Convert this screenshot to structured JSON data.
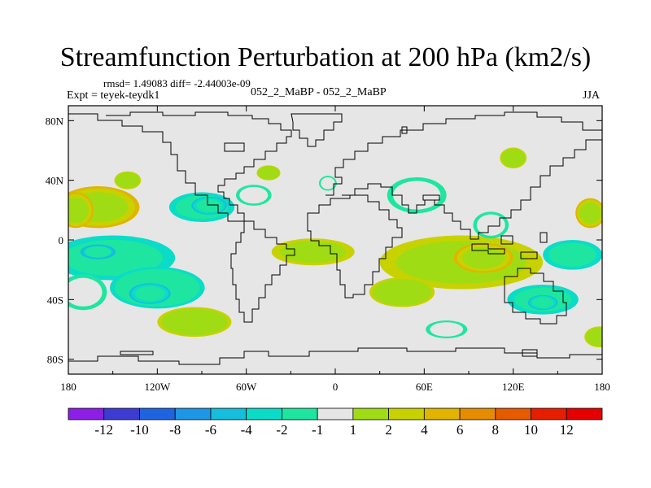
{
  "chart_data": {
    "type": "heatmap",
    "title": "Streamfunction Perturbation at 200 hPa (km2/s)",
    "stats": "rmsd= 1.49083 diff= -2.44003e-09",
    "experiment": "Expt = teyek-teydk1",
    "comparison": "052_2_MaBP - 052_2_MaBP",
    "season": "JJA",
    "xlim": [
      -180,
      180
    ],
    "ylim": [
      -90,
      90
    ],
    "x_ticks": [
      {
        "value": -180,
        "label": "180"
      },
      {
        "value": -120,
        "label": "120W"
      },
      {
        "value": -60,
        "label": "60W"
      },
      {
        "value": 0,
        "label": "0"
      },
      {
        "value": 60,
        "label": "60E"
      },
      {
        "value": 120,
        "label": "120E"
      },
      {
        "value": 180,
        "label": "180"
      }
    ],
    "y_ticks": [
      {
        "value": 80,
        "label": "80N"
      },
      {
        "value": 40,
        "label": "40N"
      },
      {
        "value": 0,
        "label": "0"
      },
      {
        "value": -40,
        "label": "40S"
      },
      {
        "value": -80,
        "label": "80S"
      }
    ],
    "levels": [
      -12,
      -10,
      -8,
      -6,
      -4,
      -2,
      -1,
      1,
      2,
      4,
      6,
      8,
      10,
      12
    ],
    "level_labels": [
      "-12",
      "-10",
      "-8",
      "-6",
      "-4",
      "-2",
      "-1",
      "1",
      "2",
      "4",
      "6",
      "8",
      "10",
      "12"
    ],
    "colors": [
      "#8c1ee6",
      "#3c3cd2",
      "#1e64e1",
      "#1e96e6",
      "#14bedc",
      "#0adcc8",
      "#1ee6a0",
      "#e6e6e6",
      "#a0dc14",
      "#c8d200",
      "#e1b400",
      "#e68c00",
      "#e65a00",
      "#e61e00",
      "#e60000"
    ],
    "features": [
      {
        "name": "central Pacific NH positive",
        "lon": -160,
        "lat": 22,
        "rlon": 28,
        "rlat": 14,
        "value": 5
      },
      {
        "name": "central Pacific NH positive (west)",
        "lon": -175,
        "lat": 20,
        "rlon": 12,
        "rlat": 12,
        "value": 4
      },
      {
        "name": "western Pacific NH positive",
        "lon": 172,
        "lat": 18,
        "rlon": 10,
        "rlat": 10,
        "value": 4
      },
      {
        "name": "North America negative",
        "lon": -90,
        "lat": 22,
        "rlon": 22,
        "rlat": 10,
        "value": -3
      },
      {
        "name": "North America negative core",
        "lon": -85,
        "lat": 23,
        "rlon": 12,
        "rlat": 6,
        "value": -4.5
      },
      {
        "name": "Atlantic NH negative",
        "lon": -55,
        "lat": 30,
        "rlon": 12,
        "rlat": 7,
        "value": -2
      },
      {
        "name": "tropical Pacific SH negative",
        "lon": -150,
        "lat": -12,
        "rlon": 42,
        "rlat": 15,
        "value": -3
      },
      {
        "name": "tropical Pacific SH negative core",
        "lon": -160,
        "lat": -8,
        "rlon": 12,
        "rlat": 5,
        "value": -6
      },
      {
        "name": "southern Pacific negative",
        "lon": -120,
        "lat": -32,
        "rlon": 32,
        "rlat": 14,
        "value": -2.5
      },
      {
        "name": "southern Pacific negative core",
        "lon": -125,
        "lat": -36,
        "rlon": 14,
        "rlat": 7,
        "value": -4.5
      },
      {
        "name": "southern Pacific negative (west)",
        "lon": -170,
        "lat": -35,
        "rlon": 16,
        "rlat": 12,
        "value": -2
      },
      {
        "name": "South Atlantic positive",
        "lon": -15,
        "lat": -8,
        "rlon": 28,
        "rlat": 9,
        "value": 3
      },
      {
        "name": "Indian Ocean positive",
        "lon": 85,
        "lat": -15,
        "rlon": 55,
        "rlat": 18,
        "value": 3.5
      },
      {
        "name": "Indian Ocean positive core",
        "lon": 100,
        "lat": -12,
        "rlon": 20,
        "rlat": 10,
        "value": 4
      },
      {
        "name": "southern Indian Ocean positive",
        "lon": 45,
        "lat": -35,
        "rlon": 22,
        "rlat": 10,
        "value": 2.5
      },
      {
        "name": "Asia negative",
        "lon": 55,
        "lat": 30,
        "rlon": 20,
        "rlat": 12,
        "value": -2
      },
      {
        "name": "East Asia negative",
        "lon": 105,
        "lat": 10,
        "rlon": 12,
        "rlat": 9,
        "value": -2
      },
      {
        "name": "western Pacific SH negative",
        "lon": 160,
        "lat": -10,
        "rlon": 20,
        "rlat": 10,
        "value": -3
      },
      {
        "name": "Australia negative",
        "lon": 140,
        "lat": -40,
        "rlon": 24,
        "rlat": 10,
        "value": -3.5
      },
      {
        "name": "Australia negative core",
        "lon": 140,
        "lat": -42,
        "rlon": 10,
        "rlat": 5,
        "value": -4.5
      },
      {
        "name": "North Pacific positive",
        "lon": 120,
        "lat": 55,
        "rlon": 9,
        "rlat": 7,
        "value": 2
      },
      {
        "name": "Alaska positive",
        "lon": -140,
        "lat": 40,
        "rlon": 9,
        "rlat": 6,
        "value": 2
      },
      {
        "name": "North Atlantic positive",
        "lon": -45,
        "lat": 45,
        "rlon": 8,
        "rlat": 5,
        "value": 2
      },
      {
        "name": "Southern Ocean positive",
        "lon": -95,
        "lat": -55,
        "rlon": 25,
        "rlat": 10,
        "value": 2
      },
      {
        "name": "Antarctic coast negative",
        "lon": 75,
        "lat": -60,
        "rlon": 14,
        "rlat": 6,
        "value": -2
      },
      {
        "name": "Southern Ocean positive (east)",
        "lon": 178,
        "lat": -65,
        "rlon": 10,
        "rlat": 7,
        "value": 2
      },
      {
        "name": "North Atlantic negative",
        "lon": -5,
        "lat": 38,
        "rlon": 6,
        "rlat": 5,
        "value": -2
      }
    ]
  }
}
